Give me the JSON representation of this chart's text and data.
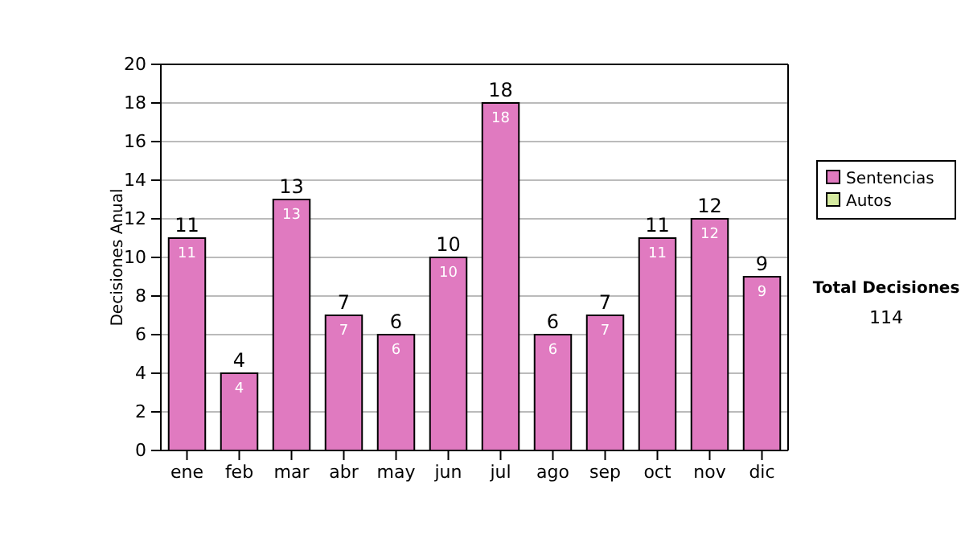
{
  "chart_data": {
    "type": "bar",
    "stacked": true,
    "ylabel": "Decisiones Anual",
    "categories": [
      "ene",
      "feb",
      "mar",
      "abr",
      "may",
      "jun",
      "jul",
      "ago",
      "sep",
      "oct",
      "nov",
      "dic"
    ],
    "series": [
      {
        "name": "Sentencias",
        "color": "#e07ac0",
        "values": [
          11,
          4,
          13,
          7,
          6,
          10,
          18,
          6,
          7,
          11,
          12,
          9
        ],
        "value_labels": [
          "11",
          "4",
          "13",
          "7",
          "6",
          "10",
          "18",
          "6",
          "7",
          "11",
          "12",
          "9"
        ]
      },
      {
        "name": "Autos",
        "color": "#d6eba0",
        "values": [
          0,
          0,
          0,
          0,
          0,
          0,
          0,
          0,
          0,
          0,
          0,
          0
        ],
        "value_labels": [
          null,
          null,
          null,
          null,
          null,
          null,
          null,
          null,
          null,
          null,
          null,
          null
        ]
      }
    ],
    "ylim": [
      0,
      20
    ],
    "yticks": [
      0,
      2,
      4,
      6,
      8,
      10,
      12,
      14,
      16,
      18,
      20
    ],
    "grid": "y",
    "legend": "right",
    "totals": [
      "11",
      "4",
      "13",
      "7",
      "6",
      "10",
      "18",
      "6",
      "7",
      "11",
      "12",
      "9"
    ],
    "annotations": [
      "Total Decisiones",
      "114"
    ]
  }
}
